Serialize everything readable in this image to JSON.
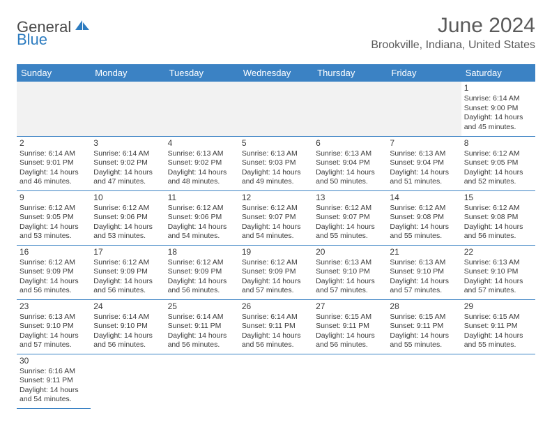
{
  "logo": {
    "general": "General",
    "blue": "Blue"
  },
  "title": "June 2024",
  "location": "Brookville, Indiana, United States",
  "colors": {
    "header_bg": "#3b82c4",
    "header_text": "#ffffff",
    "divider": "#3b82c4",
    "body_text": "#3a3a3a",
    "title_text": "#5a5a5a",
    "logo_blue": "#2d7cc0",
    "blank_bg": "#f2f2f2"
  },
  "typography": {
    "title_fontsize": 30,
    "location_fontsize": 16,
    "weekday_fontsize": 13,
    "cell_fontsize": 10.5,
    "daynum_fontsize": 12
  },
  "weekdays": [
    "Sunday",
    "Monday",
    "Tuesday",
    "Wednesday",
    "Thursday",
    "Friday",
    "Saturday"
  ],
  "grid": [
    [
      null,
      null,
      null,
      null,
      null,
      null,
      {
        "n": "1",
        "sr": "Sunrise: 6:14 AM",
        "ss": "Sunset: 9:00 PM",
        "d1": "Daylight: 14 hours",
        "d2": "and 45 minutes."
      }
    ],
    [
      {
        "n": "2",
        "sr": "Sunrise: 6:14 AM",
        "ss": "Sunset: 9:01 PM",
        "d1": "Daylight: 14 hours",
        "d2": "and 46 minutes."
      },
      {
        "n": "3",
        "sr": "Sunrise: 6:14 AM",
        "ss": "Sunset: 9:02 PM",
        "d1": "Daylight: 14 hours",
        "d2": "and 47 minutes."
      },
      {
        "n": "4",
        "sr": "Sunrise: 6:13 AM",
        "ss": "Sunset: 9:02 PM",
        "d1": "Daylight: 14 hours",
        "d2": "and 48 minutes."
      },
      {
        "n": "5",
        "sr": "Sunrise: 6:13 AM",
        "ss": "Sunset: 9:03 PM",
        "d1": "Daylight: 14 hours",
        "d2": "and 49 minutes."
      },
      {
        "n": "6",
        "sr": "Sunrise: 6:13 AM",
        "ss": "Sunset: 9:04 PM",
        "d1": "Daylight: 14 hours",
        "d2": "and 50 minutes."
      },
      {
        "n": "7",
        "sr": "Sunrise: 6:13 AM",
        "ss": "Sunset: 9:04 PM",
        "d1": "Daylight: 14 hours",
        "d2": "and 51 minutes."
      },
      {
        "n": "8",
        "sr": "Sunrise: 6:12 AM",
        "ss": "Sunset: 9:05 PM",
        "d1": "Daylight: 14 hours",
        "d2": "and 52 minutes."
      }
    ],
    [
      {
        "n": "9",
        "sr": "Sunrise: 6:12 AM",
        "ss": "Sunset: 9:05 PM",
        "d1": "Daylight: 14 hours",
        "d2": "and 53 minutes."
      },
      {
        "n": "10",
        "sr": "Sunrise: 6:12 AM",
        "ss": "Sunset: 9:06 PM",
        "d1": "Daylight: 14 hours",
        "d2": "and 53 minutes."
      },
      {
        "n": "11",
        "sr": "Sunrise: 6:12 AM",
        "ss": "Sunset: 9:06 PM",
        "d1": "Daylight: 14 hours",
        "d2": "and 54 minutes."
      },
      {
        "n": "12",
        "sr": "Sunrise: 6:12 AM",
        "ss": "Sunset: 9:07 PM",
        "d1": "Daylight: 14 hours",
        "d2": "and 54 minutes."
      },
      {
        "n": "13",
        "sr": "Sunrise: 6:12 AM",
        "ss": "Sunset: 9:07 PM",
        "d1": "Daylight: 14 hours",
        "d2": "and 55 minutes."
      },
      {
        "n": "14",
        "sr": "Sunrise: 6:12 AM",
        "ss": "Sunset: 9:08 PM",
        "d1": "Daylight: 14 hours",
        "d2": "and 55 minutes."
      },
      {
        "n": "15",
        "sr": "Sunrise: 6:12 AM",
        "ss": "Sunset: 9:08 PM",
        "d1": "Daylight: 14 hours",
        "d2": "and 56 minutes."
      }
    ],
    [
      {
        "n": "16",
        "sr": "Sunrise: 6:12 AM",
        "ss": "Sunset: 9:09 PM",
        "d1": "Daylight: 14 hours",
        "d2": "and 56 minutes."
      },
      {
        "n": "17",
        "sr": "Sunrise: 6:12 AM",
        "ss": "Sunset: 9:09 PM",
        "d1": "Daylight: 14 hours",
        "d2": "and 56 minutes."
      },
      {
        "n": "18",
        "sr": "Sunrise: 6:12 AM",
        "ss": "Sunset: 9:09 PM",
        "d1": "Daylight: 14 hours",
        "d2": "and 56 minutes."
      },
      {
        "n": "19",
        "sr": "Sunrise: 6:12 AM",
        "ss": "Sunset: 9:09 PM",
        "d1": "Daylight: 14 hours",
        "d2": "and 57 minutes."
      },
      {
        "n": "20",
        "sr": "Sunrise: 6:13 AM",
        "ss": "Sunset: 9:10 PM",
        "d1": "Daylight: 14 hours",
        "d2": "and 57 minutes."
      },
      {
        "n": "21",
        "sr": "Sunrise: 6:13 AM",
        "ss": "Sunset: 9:10 PM",
        "d1": "Daylight: 14 hours",
        "d2": "and 57 minutes."
      },
      {
        "n": "22",
        "sr": "Sunrise: 6:13 AM",
        "ss": "Sunset: 9:10 PM",
        "d1": "Daylight: 14 hours",
        "d2": "and 57 minutes."
      }
    ],
    [
      {
        "n": "23",
        "sr": "Sunrise: 6:13 AM",
        "ss": "Sunset: 9:10 PM",
        "d1": "Daylight: 14 hours",
        "d2": "and 57 minutes."
      },
      {
        "n": "24",
        "sr": "Sunrise: 6:14 AM",
        "ss": "Sunset: 9:10 PM",
        "d1": "Daylight: 14 hours",
        "d2": "and 56 minutes."
      },
      {
        "n": "25",
        "sr": "Sunrise: 6:14 AM",
        "ss": "Sunset: 9:11 PM",
        "d1": "Daylight: 14 hours",
        "d2": "and 56 minutes."
      },
      {
        "n": "26",
        "sr": "Sunrise: 6:14 AM",
        "ss": "Sunset: 9:11 PM",
        "d1": "Daylight: 14 hours",
        "d2": "and 56 minutes."
      },
      {
        "n": "27",
        "sr": "Sunrise: 6:15 AM",
        "ss": "Sunset: 9:11 PM",
        "d1": "Daylight: 14 hours",
        "d2": "and 56 minutes."
      },
      {
        "n": "28",
        "sr": "Sunrise: 6:15 AM",
        "ss": "Sunset: 9:11 PM",
        "d1": "Daylight: 14 hours",
        "d2": "and 55 minutes."
      },
      {
        "n": "29",
        "sr": "Sunrise: 6:15 AM",
        "ss": "Sunset: 9:11 PM",
        "d1": "Daylight: 14 hours",
        "d2": "and 55 minutes."
      }
    ],
    [
      {
        "n": "30",
        "sr": "Sunrise: 6:16 AM",
        "ss": "Sunset: 9:11 PM",
        "d1": "Daylight: 14 hours",
        "d2": "and 54 minutes."
      },
      null,
      null,
      null,
      null,
      null,
      null
    ]
  ]
}
